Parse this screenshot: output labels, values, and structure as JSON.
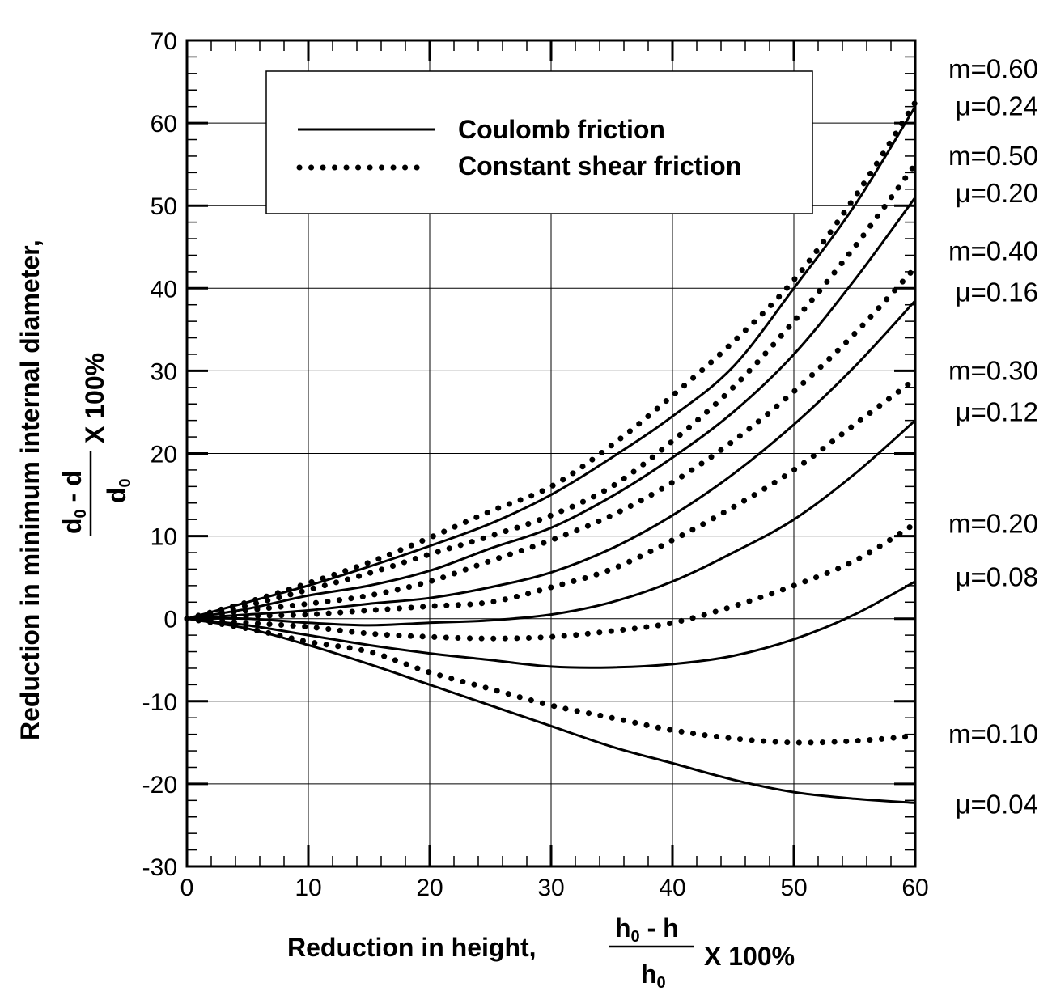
{
  "chart_data": {
    "type": "line",
    "xlim": [
      0,
      60
    ],
    "ylim": [
      -30,
      70
    ],
    "x_ticks": [
      "0",
      "10",
      "20",
      "30",
      "40",
      "50",
      "60"
    ],
    "y_ticks": [
      "-30",
      "-20",
      "-10",
      "0",
      "10",
      "20",
      "30",
      "40",
      "50",
      "60",
      "70"
    ],
    "grid": true,
    "xlabel": {
      "prefix": "Reduction in height,",
      "numerator_main": "h",
      "numerator_sub": "0",
      "numerator_rest": " - h",
      "denominator_main": "h",
      "denominator_sub": "0",
      "suffix": "X 100%"
    },
    "ylabel": {
      "prefix": "Reduction in minimum internal diameter,",
      "numerator_main": "d",
      "numerator_sub": "0",
      "numerator_rest": " - d",
      "denominator_main": "d",
      "denominator_sub": "0",
      "suffix": "X 100%"
    },
    "legend": {
      "position": "top-center",
      "entries": [
        {
          "label": "Coulomb friction",
          "style": "solid"
        },
        {
          "label": "Constant shear friction",
          "style": "dotted"
        }
      ]
    },
    "x": [
      0,
      5,
      10,
      15,
      20,
      25,
      30,
      35,
      40,
      45,
      50,
      55,
      60
    ],
    "series": [
      {
        "style": "dotted",
        "label": "m=0.60",
        "values": [
          0,
          2.0,
          4.3,
          6.8,
          9.8,
          13.0,
          16.0,
          21.0,
          27.0,
          33.5,
          41.0,
          51.0,
          62.5
        ]
      },
      {
        "style": "solid",
        "label": "μ=0.24",
        "values": [
          0,
          2.0,
          4.0,
          6.3,
          8.8,
          11.5,
          15.0,
          19.5,
          24.5,
          30.5,
          40.0,
          50.0,
          62.0
        ]
      },
      {
        "style": "dotted",
        "label": "m=0.50",
        "values": [
          0,
          1.6,
          3.5,
          5.5,
          7.8,
          10.0,
          12.5,
          16.0,
          21.5,
          28.0,
          36.0,
          45.0,
          55.0
        ]
      },
      {
        "style": "solid",
        "label": "μ=0.20",
        "values": [
          0,
          1.2,
          2.8,
          4.0,
          5.8,
          8.5,
          11.0,
          14.8,
          19.5,
          25.0,
          32.0,
          41.0,
          51.0
        ]
      },
      {
        "style": "dotted",
        "label": "m=0.40",
        "values": [
          0,
          1.0,
          1.8,
          2.8,
          4.5,
          7.0,
          9.5,
          12.5,
          16.5,
          21.5,
          27.5,
          34.5,
          42.5
        ]
      },
      {
        "style": "solid",
        "label": "μ=0.16",
        "values": [
          0,
          0.5,
          1.0,
          1.8,
          2.5,
          3.8,
          5.6,
          8.5,
          12.5,
          17.5,
          23.5,
          30.5,
          38.5
        ]
      },
      {
        "style": "dotted",
        "label": "m=0.30",
        "values": [
          0,
          0.3,
          0.5,
          1.0,
          1.5,
          2.0,
          3.8,
          6.0,
          9.5,
          13.5,
          18.0,
          23.5,
          29.0
        ]
      },
      {
        "style": "solid",
        "label": "μ=0.12",
        "values": [
          0,
          0,
          -0.5,
          -0.8,
          -0.5,
          -0.2,
          0.5,
          2.0,
          4.5,
          8.0,
          12.0,
          17.5,
          24.0
        ]
      },
      {
        "style": "dotted",
        "label": "m=0.20",
        "values": [
          0,
          -0.5,
          -1.0,
          -1.8,
          -2.2,
          -2.4,
          -2.2,
          -1.5,
          -0.5,
          1.5,
          4.0,
          7.0,
          11.5
        ]
      },
      {
        "style": "solid",
        "label": "μ=0.08",
        "values": [
          0,
          -0.8,
          -2.0,
          -3.2,
          -4.2,
          -5.0,
          -5.8,
          -5.9,
          -5.5,
          -4.5,
          -2.5,
          0.5,
          4.5
        ]
      },
      {
        "style": "dotted",
        "label": "m=0.10",
        "values": [
          0,
          -1.2,
          -2.8,
          -4.0,
          -6.5,
          -8.5,
          -10.5,
          -12.0,
          -13.5,
          -14.5,
          -15.0,
          -14.8,
          -14.2
        ]
      },
      {
        "style": "solid",
        "label": "μ=0.04",
        "values": [
          0,
          -1.2,
          -3.2,
          -5.5,
          -8.0,
          -10.5,
          -13.0,
          -15.5,
          -17.5,
          -19.5,
          -21.0,
          -21.8,
          -22.3
        ]
      }
    ],
    "right_labels": [
      {
        "text": "m=0.60",
        "y": 66.5
      },
      {
        "text": "μ=0.24",
        "y": 62.0
      },
      {
        "text": "m=0.50",
        "y": 56.0
      },
      {
        "text": "μ=0.20",
        "y": 51.5
      },
      {
        "text": "m=0.40",
        "y": 44.5
      },
      {
        "text": "μ=0.16",
        "y": 39.5
      },
      {
        "text": "m=0.30",
        "y": 30.0
      },
      {
        "text": "μ=0.12",
        "y": 25.0
      },
      {
        "text": "m=0.20",
        "y": 11.5
      },
      {
        "text": "μ=0.08",
        "y": 5.0
      },
      {
        "text": "m=0.10",
        "y": -14.0
      },
      {
        "text": "μ=0.04",
        "y": -22.5
      }
    ]
  }
}
